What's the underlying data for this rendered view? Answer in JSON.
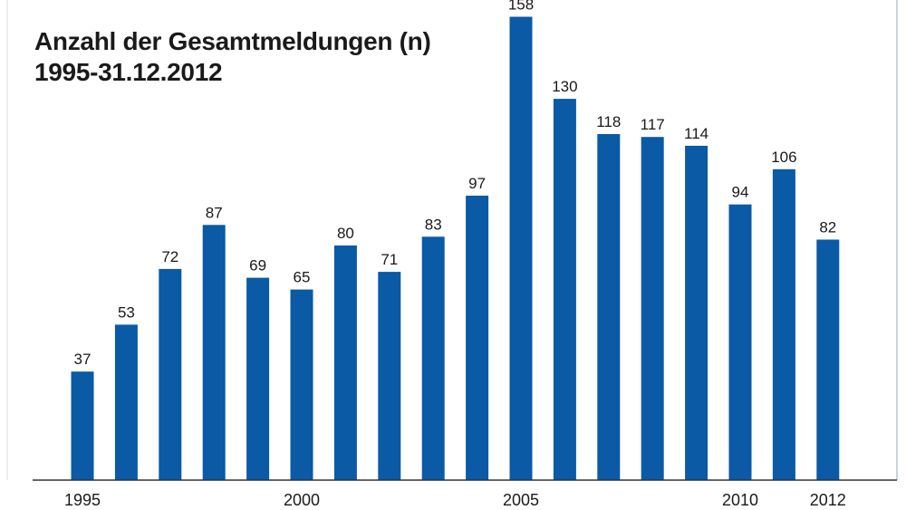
{
  "chart_data": {
    "type": "bar",
    "title": "Anzahl der Gesamtmeldungen (n)",
    "subtitle": "1995-31.12.2012",
    "categories": [
      "1995",
      "1996",
      "1997",
      "1998",
      "1999",
      "2000",
      "2001",
      "2002",
      "2003",
      "2004",
      "2005",
      "2006",
      "2007",
      "2008",
      "2009",
      "2010",
      "2011",
      "2012"
    ],
    "values": [
      37,
      53,
      72,
      87,
      69,
      65,
      80,
      71,
      83,
      97,
      158,
      130,
      118,
      117,
      114,
      94,
      106,
      82
    ],
    "value_labels": [
      "37",
      "53",
      "72",
      "87",
      "69",
      "65",
      "80",
      "71",
      "83",
      "97",
      "158",
      "130",
      "118",
      "117",
      "114",
      "94",
      "106",
      "82"
    ],
    "x_tick_labels": [
      "1995",
      "2000",
      "2005",
      "2010",
      "2012"
    ],
    "ylim": [
      0,
      160
    ],
    "grid": false,
    "bar_color": "#0a5aa5"
  }
}
